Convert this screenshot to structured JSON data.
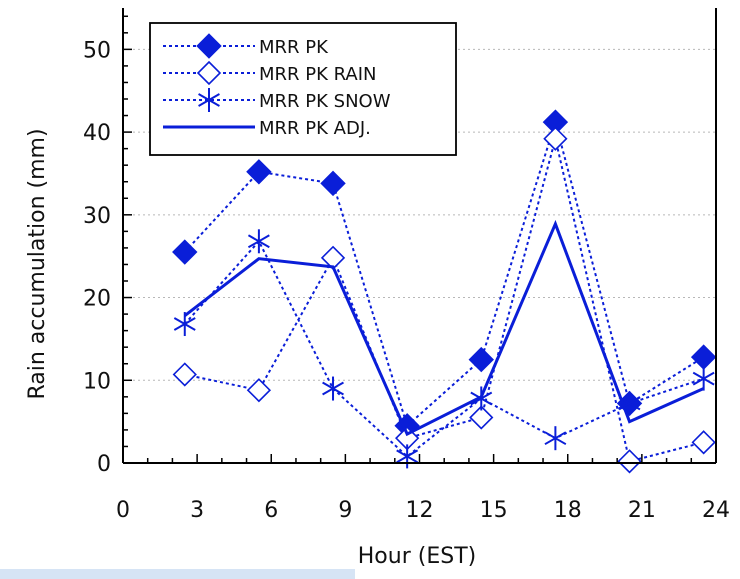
{
  "chart_data": {
    "type": "line",
    "xlabel": "Hour (EST)",
    "ylabel": "Rain accumulation (mm)",
    "xlim": [
      0,
      24
    ],
    "ylim": [
      0,
      55
    ],
    "xticks": [
      "0",
      "3",
      "6",
      "9",
      "12",
      "15",
      "18",
      "21",
      "24"
    ],
    "yticks": [
      "0",
      "10",
      "20",
      "30",
      "40",
      "50"
    ],
    "grid": "horizontal-dotted",
    "legend_position": "top-left",
    "x": [
      2.5,
      5.5,
      8.5,
      11.5,
      14.5,
      17.5,
      20.5,
      23.5
    ],
    "series": [
      {
        "name": "MRR PK",
        "marker": "filled-diamond",
        "line": "dotted",
        "values": [
          25.5,
          35.2,
          33.8,
          4.5,
          12.5,
          41.2,
          7.2,
          12.8
        ]
      },
      {
        "name": "MRR PK RAIN",
        "marker": "open-diamond",
        "line": "dotted",
        "values": [
          10.7,
          8.8,
          24.8,
          3.0,
          5.5,
          39.2,
          0.2,
          2.5
        ]
      },
      {
        "name": "MRR PK SNOW",
        "marker": "asterisk",
        "line": "dotted",
        "values": [
          16.8,
          26.8,
          9.0,
          0.8,
          7.8,
          3.0,
          7.2,
          10.2
        ]
      },
      {
        "name": "MRR PK ADJ.",
        "marker": "none",
        "line": "solid",
        "values": [
          17.8,
          24.7,
          23.7,
          3.5,
          8.0,
          28.9,
          5.0,
          9.0
        ]
      }
    ],
    "colors": {
      "series": "#0a1ed8",
      "axis": "#000000",
      "grid": "#b8b8b8"
    }
  }
}
